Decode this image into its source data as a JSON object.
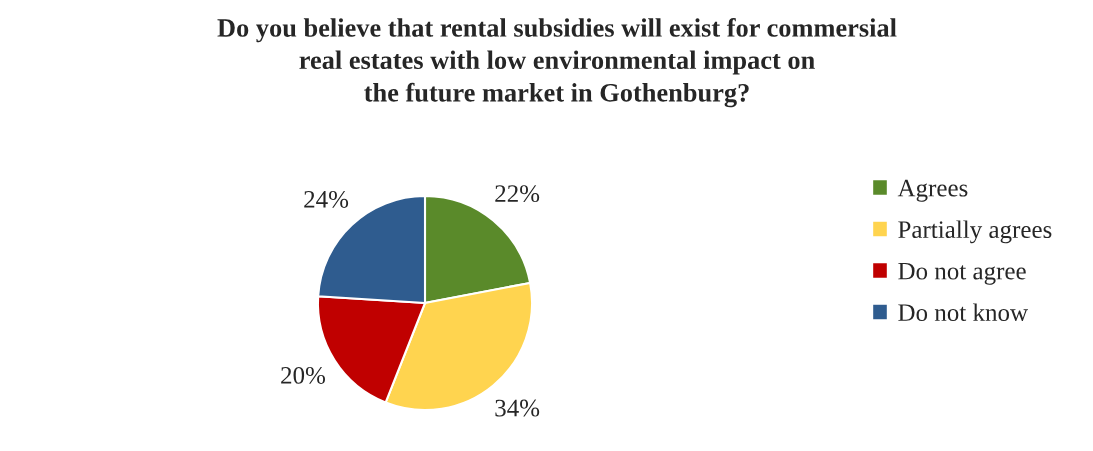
{
  "chart_data": {
    "type": "pie",
    "title": "Do you believe that rental subsidies will exist for commersial\nreal estates with low environmental impact on\nthe future market in Gothenburg?",
    "categories": [
      "Agrees",
      "Partially agrees",
      "Do not agree",
      "Do not know"
    ],
    "values": [
      22,
      34,
      20,
      24
    ],
    "colors": [
      "#5a8a2a",
      "#ffd44f",
      "#c00000",
      "#2f5c8f"
    ],
    "value_labels": [
      "22%",
      "34%",
      "20%",
      "24%"
    ],
    "legend": "right"
  }
}
